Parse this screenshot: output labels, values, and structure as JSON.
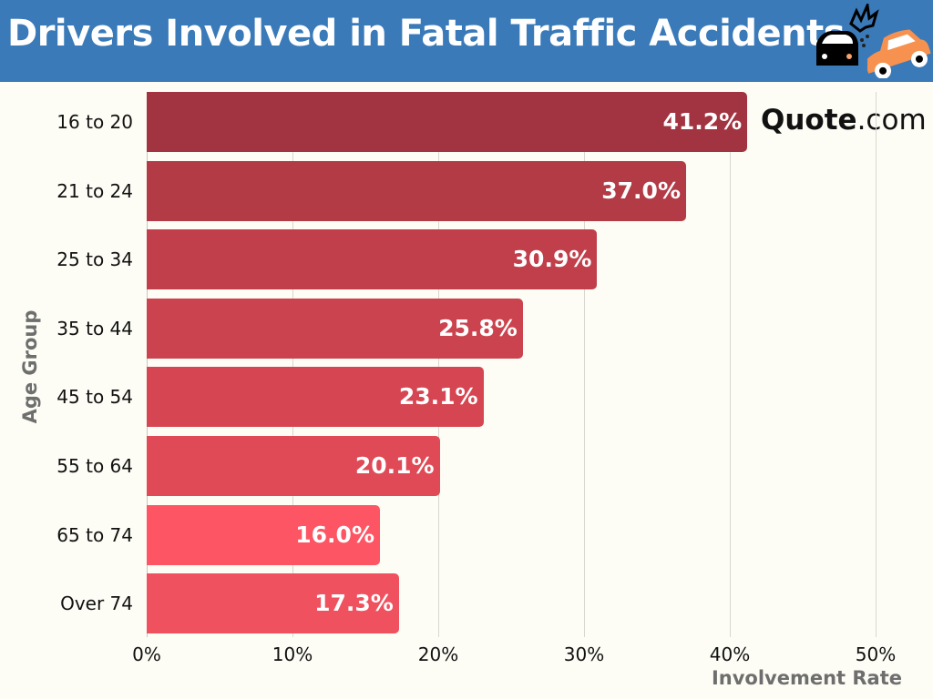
{
  "header": {
    "title": "Drivers Involved in Fatal Traffic Accidents",
    "icon": "car-crash-icon",
    "background": "#3a7ab8"
  },
  "logo": {
    "bold": "Quote",
    "rest": ".com"
  },
  "chart_data": {
    "type": "bar",
    "orientation": "horizontal",
    "title": "Drivers Involved in Fatal Traffic Accidents",
    "xlabel": "Involvement Rate",
    "ylabel": "Age Group",
    "categories": [
      "16 to 20",
      "21 to 24",
      "25 to 34",
      "35 to 44",
      "45 to 54",
      "55 to 64",
      "65 to 74",
      "Over 74"
    ],
    "values": [
      41.2,
      37.0,
      30.9,
      25.8,
      23.1,
      20.1,
      16.0,
      17.3
    ],
    "value_labels": [
      "41.2%",
      "37.0%",
      "30.9%",
      "25.8%",
      "23.1%",
      "20.1%",
      "16.0%",
      "17.3%"
    ],
    "colors": [
      "#a13440",
      "#b33b46",
      "#c03f4a",
      "#cb434e",
      "#d54652",
      "#df4a56",
      "#fd5564",
      "#ef515f"
    ],
    "xlim": [
      0,
      50
    ],
    "xticks": [
      "0%",
      "10%",
      "20%",
      "30%",
      "40%",
      "50%"
    ],
    "grid": true,
    "legend": null
  }
}
